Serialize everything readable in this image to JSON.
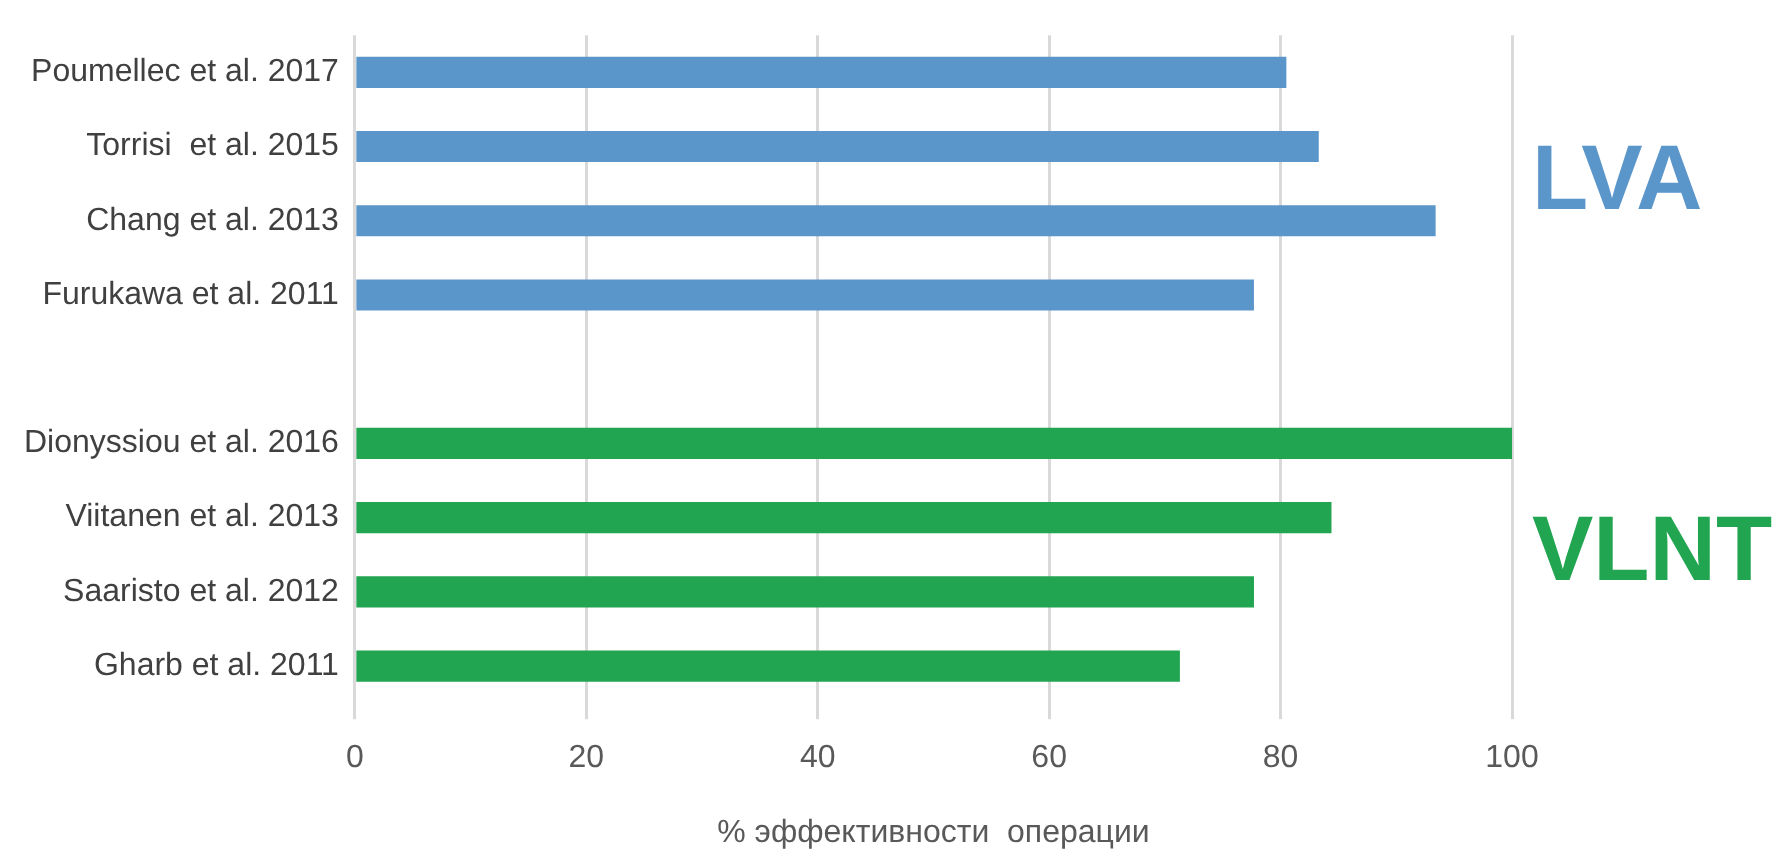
{
  "chart_data": {
    "type": "bar",
    "orientation": "horizontal",
    "xlabel": "% эффективности  операции",
    "categories": [
      "Poumellec et al. 2017",
      "Torrisi  et al. 2015",
      "Chang et al. 2013",
      "Furukawa et al. 2011",
      null,
      "Dionyssiou et al. 2016",
      "Viitanen et al. 2013",
      "Saaristo et al. 2012",
      "Gharb et al. 2011"
    ],
    "values": [
      80.5,
      83.3,
      93.4,
      77.7,
      null,
      100,
      84.4,
      77.7,
      71.3
    ],
    "colors": [
      "#5b96cb",
      "#5b96cb",
      "#5b96cb",
      "#5b96cb",
      "#5b96cb",
      "#21a550",
      "#21a550",
      "#21a550",
      "#21a550"
    ],
    "xlim": [
      0,
      100
    ],
    "xticks": [
      0,
      20,
      40,
      60,
      80,
      100
    ],
    "grid": "x",
    "legend": false,
    "annotations": [
      "LVA",
      "VLNT"
    ]
  }
}
